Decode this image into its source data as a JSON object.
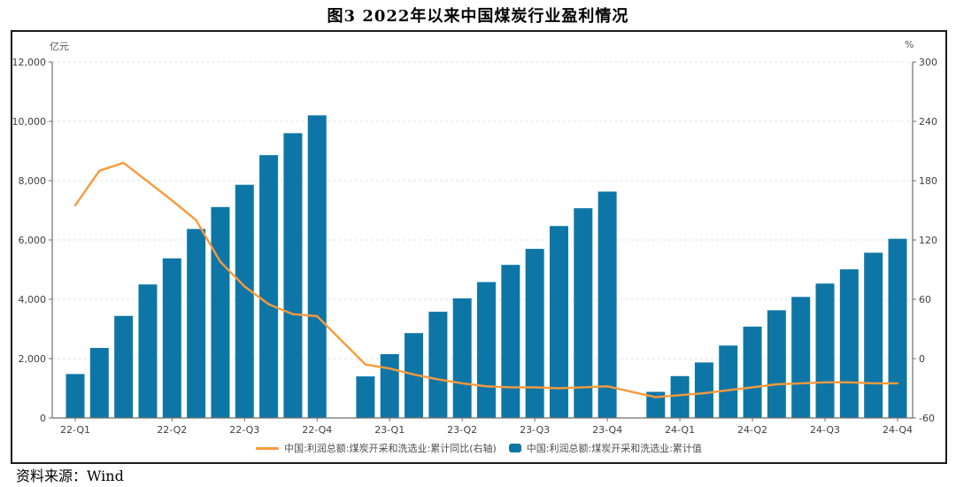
{
  "title": "图3  2022年以来中国煤炭行业盈利情况",
  "source": {
    "label": "资料来源：",
    "value": "Wind"
  },
  "legend": {
    "line_label": "中国:利润总额:煤炭开采和洗选业:累计同比(右轴)",
    "bar_label": "中国:利润总额:煤炭开采和洗选业:累计值"
  },
  "colors": {
    "bar": "#0e76a7",
    "line": "#f9993b",
    "grid": "#e3e3e3",
    "spine": "#6e6e6e",
    "tick_text": "#404040",
    "frame_border": "#1a1a1a"
  },
  "chart_data": {
    "type": "bar+line",
    "title": "图3  2022年以来中国煤炭行业盈利情况",
    "grid": "horizontal-dashed",
    "legend_position": "bottom-center",
    "left_axis": {
      "unit": "亿元",
      "min": 0,
      "max": 12000,
      "ticks": [
        {
          "v": 0,
          "label": "0"
        },
        {
          "v": 2000,
          "label": "2,000"
        },
        {
          "v": 4000,
          "label": "4,000"
        },
        {
          "v": 6000,
          "label": "6,000"
        },
        {
          "v": 8000,
          "label": "8,000"
        },
        {
          "v": 10000,
          "label": "10,000"
        },
        {
          "v": 12000,
          "label": "12,000"
        }
      ]
    },
    "right_axis": {
      "unit": "%",
      "min": -60,
      "max": 300,
      "ticks": [
        {
          "v": -60,
          "label": "-60"
        },
        {
          "v": 0,
          "label": "0"
        },
        {
          "v": 60,
          "label": "60"
        },
        {
          "v": 120,
          "label": "120"
        },
        {
          "v": 180,
          "label": "180"
        },
        {
          "v": 240,
          "label": "240"
        },
        {
          "v": 300,
          "label": "300"
        }
      ]
    },
    "x_axis": {
      "note": "monthly data Feb-2022..Dec-2024, month_index 0 = Feb-2022, January values missing (gaps at index 11 and 23)",
      "ticks": [
        {
          "month": 0,
          "label": "22-Q1"
        },
        {
          "month": 4,
          "label": "22-Q2"
        },
        {
          "month": 7,
          "label": "22-Q3"
        },
        {
          "month": 10,
          "label": "22-Q4"
        },
        {
          "month": 13,
          "label": "23-Q1"
        },
        {
          "month": 16,
          "label": "23-Q2"
        },
        {
          "month": 19,
          "label": "23-Q3"
        },
        {
          "month": 22,
          "label": "23-Q4"
        },
        {
          "month": 25,
          "label": "24-Q1"
        },
        {
          "month": 28,
          "label": "24-Q2"
        },
        {
          "month": 31,
          "label": "24-Q3"
        },
        {
          "month": 34,
          "label": "24-Q4"
        }
      ]
    },
    "month_index": [
      0,
      1,
      2,
      3,
      4,
      5,
      6,
      7,
      8,
      9,
      10,
      12,
      13,
      14,
      15,
      16,
      17,
      18,
      19,
      20,
      21,
      22,
      24,
      25,
      26,
      27,
      28,
      29,
      30,
      31,
      32,
      33,
      34
    ],
    "bar_series": {
      "name": "中国:利润总额:煤炭开采和洗选业:累计值",
      "axis": "left",
      "values": [
        1480,
        2360,
        3440,
        4500,
        5380,
        6370,
        7110,
        7860,
        8860,
        9600,
        10200,
        1400,
        2150,
        2860,
        3580,
        4030,
        4580,
        5160,
        5700,
        6470,
        7070,
        7630,
        880,
        1410,
        1870,
        2440,
        3080,
        3630,
        4080,
        4530,
        5010,
        5570,
        6040
      ]
    },
    "line_series": {
      "name": "中国:利润总额:煤炭开采和洗选业:累计同比(右轴)",
      "axis": "right",
      "values": [
        155,
        190,
        198,
        179,
        160,
        140,
        98,
        73,
        55,
        45,
        43,
        -6,
        -10,
        -16,
        -21,
        -25,
        -28,
        -29,
        -29,
        -30,
        -29,
        -28,
        -39,
        -37,
        -35,
        -32,
        -29,
        -26,
        -25,
        -24,
        -24,
        -25,
        -25
      ]
    }
  }
}
